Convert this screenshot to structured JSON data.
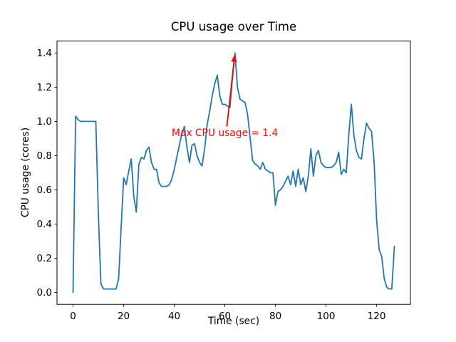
{
  "chart_data": {
    "type": "line",
    "title": "CPU usage over Time",
    "xlabel": "Time (sec)",
    "ylabel": "CPU usage (cores)",
    "line_color": "#1f77b4",
    "axis_color": "#000000",
    "xticks": [
      0,
      20,
      40,
      60,
      80,
      100,
      120
    ],
    "ytick_labels": [
      "0.0",
      "0.2",
      "0.4",
      "0.6",
      "0.8",
      "1.0",
      "1.2",
      "1.4"
    ],
    "yticks": [
      0.0,
      0.2,
      0.4,
      0.6,
      0.8,
      1.0,
      1.2,
      1.4
    ],
    "xlim": [
      -6.35,
      133.35
    ],
    "ylim": [
      -0.07,
      1.47
    ],
    "grid": false,
    "legend": "none",
    "x": [
      0,
      1,
      2,
      3,
      4,
      5,
      6,
      7,
      8,
      9,
      10,
      11,
      12,
      13,
      14,
      15,
      16,
      17,
      18,
      19,
      20,
      21,
      22,
      23,
      24,
      25,
      26,
      27,
      28,
      29,
      30,
      31,
      32,
      33,
      34,
      35,
      36,
      37,
      38,
      39,
      40,
      41,
      42,
      43,
      44,
      45,
      46,
      47,
      48,
      49,
      50,
      51,
      52,
      53,
      54,
      55,
      56,
      57,
      58,
      59,
      60,
      61,
      62,
      63,
      64,
      65,
      66,
      67,
      68,
      69,
      70,
      71,
      72,
      73,
      74,
      75,
      76,
      77,
      78,
      79,
      80,
      81,
      82,
      83,
      84,
      85,
      86,
      87,
      88,
      89,
      90,
      91,
      92,
      93,
      94,
      95,
      96,
      97,
      98,
      99,
      100,
      101,
      102,
      103,
      104,
      105,
      106,
      107,
      108,
      109,
      110,
      111,
      112,
      113,
      114,
      115,
      116,
      117,
      118,
      119,
      120,
      121,
      122,
      123,
      124,
      125,
      126,
      127
    ],
    "y": [
      0.0,
      1.03,
      1.01,
      1.0,
      1.0,
      1.0,
      1.0,
      1.0,
      1.0,
      1.0,
      0.45,
      0.05,
      0.02,
      0.02,
      0.02,
      0.02,
      0.02,
      0.02,
      0.08,
      0.38,
      0.67,
      0.63,
      0.71,
      0.78,
      0.56,
      0.47,
      0.75,
      0.79,
      0.78,
      0.83,
      0.85,
      0.76,
      0.72,
      0.72,
      0.64,
      0.62,
      0.62,
      0.62,
      0.63,
      0.66,
      0.72,
      0.79,
      0.86,
      0.93,
      0.97,
      0.85,
      0.76,
      0.86,
      0.87,
      0.8,
      0.76,
      0.74,
      0.84,
      0.98,
      1.06,
      1.15,
      1.22,
      1.27,
      1.15,
      1.1,
      1.1,
      1.09,
      1.08,
      1.25,
      1.4,
      1.2,
      1.13,
      1.12,
      1.11,
      1.04,
      0.9,
      0.77,
      0.75,
      0.74,
      0.72,
      0.76,
      0.72,
      0.71,
      0.7,
      0.7,
      0.51,
      0.59,
      0.6,
      0.62,
      0.65,
      0.68,
      0.63,
      0.71,
      0.62,
      0.72,
      0.63,
      0.67,
      0.59,
      0.68,
      0.84,
      0.68,
      0.8,
      0.83,
      0.76,
      0.74,
      0.73,
      0.73,
      0.73,
      0.74,
      0.76,
      0.82,
      0.69,
      0.72,
      0.7,
      0.92,
      1.1,
      0.92,
      0.83,
      0.79,
      0.78,
      0.9,
      0.99,
      0.96,
      0.94,
      0.76,
      0.42,
      0.25,
      0.21,
      0.08,
      0.03,
      0.02,
      0.02,
      0.27
    ],
    "annotation": {
      "text": "Max CPU usage = 1.4",
      "color": "#ff0000",
      "point": [
        64,
        1.4
      ],
      "text_pos": [
        39,
        0.9
      ],
      "arrow_tail": [
        60.8,
        0.97
      ],
      "arrow_tip": [
        63.9,
        1.39
      ]
    }
  }
}
